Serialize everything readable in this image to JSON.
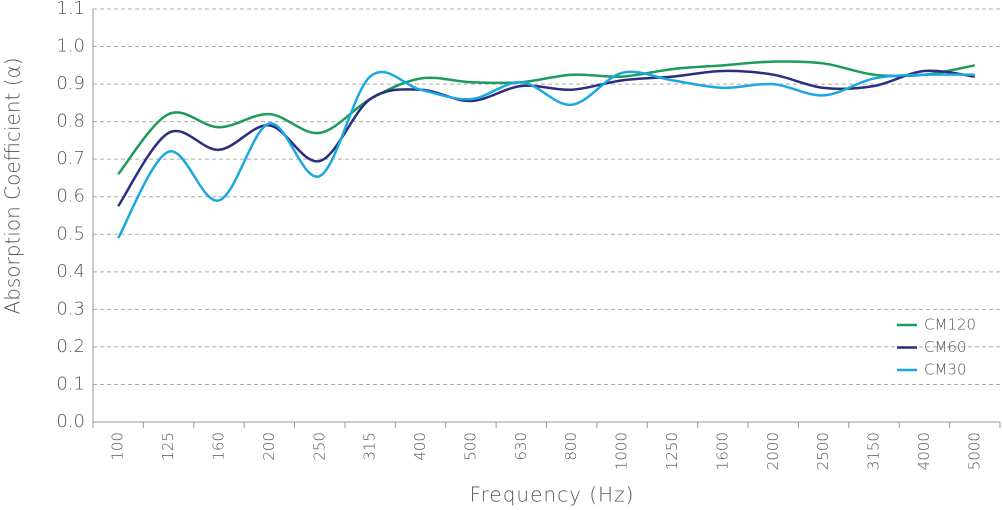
{
  "chart_data": {
    "type": "line",
    "x_label": "Frequency (Hz)",
    "y_label": "Absorption Coefficient (α)",
    "categories": [
      "100",
      "125",
      "160",
      "200",
      "250",
      "315",
      "400",
      "500",
      "630",
      "800",
      "1000",
      "1250",
      "1600",
      "2000",
      "2500",
      "3150",
      "4000",
      "5000"
    ],
    "series": [
      {
        "name": "CM120",
        "color": "#1e9a5a",
        "values": [
          0.66,
          0.82,
          0.785,
          0.82,
          0.77,
          0.86,
          0.915,
          0.905,
          0.905,
          0.925,
          0.92,
          0.94,
          0.95,
          0.96,
          0.955,
          0.925,
          0.925,
          0.95
        ]
      },
      {
        "name": "CM60",
        "color": "#2b2e7e",
        "values": [
          0.575,
          0.77,
          0.725,
          0.79,
          0.695,
          0.86,
          0.885,
          0.855,
          0.895,
          0.885,
          0.91,
          0.92,
          0.935,
          0.925,
          0.89,
          0.895,
          0.935,
          0.92
        ]
      },
      {
        "name": "CM30",
        "color": "#1ba8e0",
        "values": [
          0.49,
          0.72,
          0.59,
          0.795,
          0.655,
          0.92,
          0.885,
          0.86,
          0.905,
          0.845,
          0.93,
          0.91,
          0.89,
          0.9,
          0.87,
          0.915,
          0.925,
          0.925
        ]
      }
    ],
    "ylim": [
      0,
      1.1
    ],
    "yticks": [
      {
        "value": 0,
        "label": "0.0"
      },
      0.1,
      0.2,
      0.3,
      0.4,
      0.5,
      0.6,
      0.7,
      0.8,
      0.9,
      {
        "value": 1,
        "label": "1.0"
      },
      1.1
    ],
    "grid": true,
    "legend": "lower right"
  }
}
